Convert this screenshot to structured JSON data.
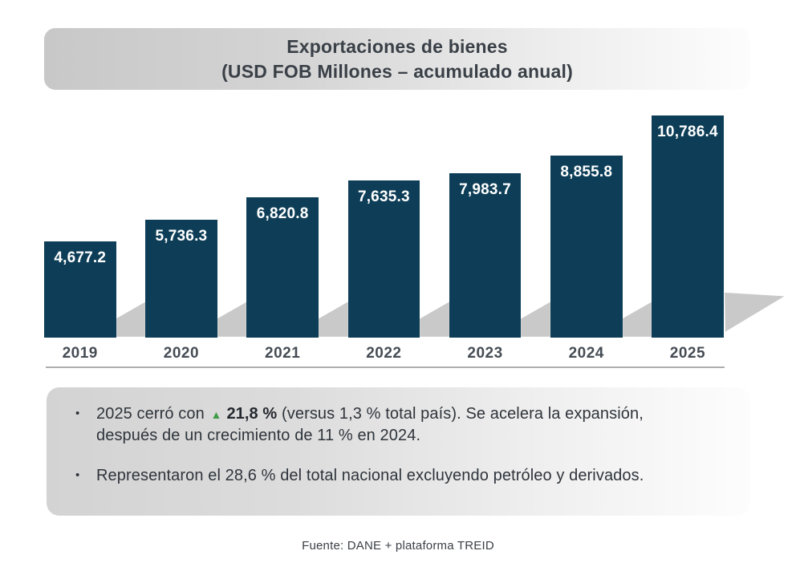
{
  "banner": {
    "line1": "Exportaciones de bienes",
    "line2": "(USD FOB Millones – acumulado anual)"
  },
  "chart_data": {
    "type": "bar",
    "title": "Exportaciones de bienes (USD FOB Millones – acumulado anual)",
    "unit": "USD FOB Millones",
    "categories": [
      "2019",
      "2020",
      "2021",
      "2022",
      "2023",
      "2024",
      "2025"
    ],
    "values": [
      4677.2,
      5736.3,
      6820.8,
      7635.3,
      7983.7,
      8855.8,
      10786.4
    ],
    "value_labels": [
      "4,677.2",
      "5,736.3",
      "6,820.8",
      "7,635.3",
      "7,983.7",
      "8,855.8",
      "10,786.4"
    ],
    "ylim": [
      0,
      11000
    ],
    "gridlines": false,
    "legend": "none",
    "bar_color": "#0e3e57",
    "value_label_color": "#ffffff",
    "category_label_color": "#454c54"
  },
  "notes": {
    "bullet_char": "•",
    "items": [
      {
        "pre": "2025 cerró con ",
        "arrow": "▲",
        "bold": "21,8 %",
        "rest": " (versus 1,3 % total país). Se acelera la expansión, después de un crecimiento de 11 % en 2024."
      },
      {
        "text": "Representaron el 28,6 % del total nacional excluyendo petróleo y derivados."
      }
    ]
  },
  "source": {
    "text": "Fuente: DANE + plataforma TREID"
  },
  "colors": {
    "bar": "#0e3e57",
    "accent_green": "#3f9b47",
    "banner_gradient_left": "#c8c8c8",
    "notes_box_gradient_left": "#d3d3d3",
    "shadow_gray": "#c9c9c9",
    "baseline_rule": "#adadad",
    "title_text": "#3a4047",
    "body_text": "#2e343b"
  }
}
